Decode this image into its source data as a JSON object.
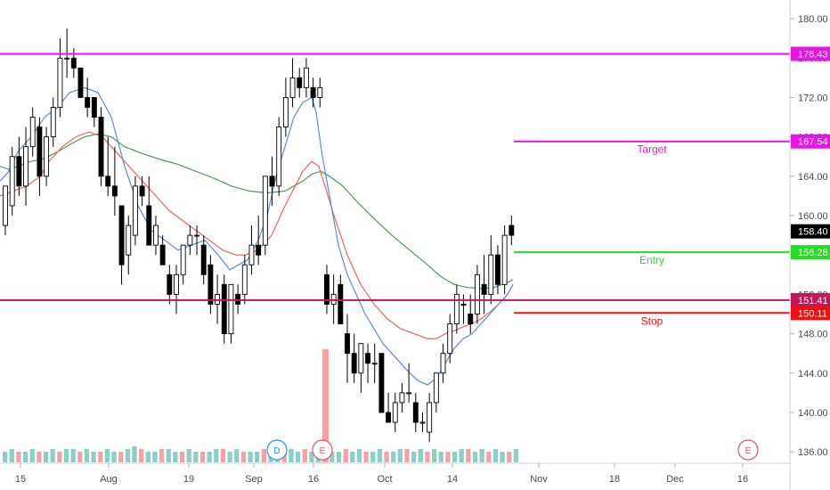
{
  "chart_data": {
    "type": "candlestick",
    "x_tick_labels": [
      "15",
      "Aug",
      "19",
      "Sep",
      "16",
      "Oct",
      "14",
      "Nov",
      "18",
      "Dec",
      "16"
    ],
    "y_tick_labels": [
      "136.00",
      "140.00",
      "144.00",
      "148.00",
      "152.00",
      "156.00",
      "160.00",
      "164.00",
      "168.00",
      "172.00",
      "176.00",
      "180.00"
    ],
    "ylim": [
      135.2,
      181.0
    ],
    "last_price": "158.40",
    "horizontal_levels": [
      {
        "value": 176.43,
        "label": "176.43",
        "color": "#e516e5",
        "full_width": true
      },
      {
        "value": 151.41,
        "label": "151.41",
        "color": "#c2185b",
        "full_width": true
      },
      {
        "value": 167.54,
        "label": "167.54",
        "color": "#e516e5",
        "full_width": false,
        "name": "Target"
      },
      {
        "value": 156.28,
        "label": "156.28",
        "color": "#22dd22",
        "full_width": false,
        "name": "Entry"
      },
      {
        "value": 150.11,
        "label": "150.11",
        "color": "#ee1111",
        "full_width": false,
        "name": "Stop"
      }
    ],
    "events": [
      {
        "label": "D",
        "color": "#2196f3"
      },
      {
        "label": "E",
        "color": "#e05573"
      },
      {
        "label": "E",
        "color": "#e05573"
      }
    ],
    "candles": [
      [
        159,
        163,
        158,
        163
      ],
      [
        161,
        167,
        160,
        166
      ],
      [
        166,
        168,
        162,
        163
      ],
      [
        163,
        169,
        161,
        167
      ],
      [
        167,
        171,
        166,
        170
      ],
      [
        169,
        170,
        162,
        164
      ],
      [
        164,
        169,
        163,
        168
      ],
      [
        168,
        172,
        167,
        171
      ],
      [
        171,
        178,
        170,
        176
      ],
      [
        176,
        179,
        174,
        176
      ],
      [
        176,
        177,
        174,
        175
      ],
      [
        175,
        175,
        172,
        172
      ],
      [
        172,
        174,
        170,
        171
      ],
      [
        172,
        172,
        169,
        170
      ],
      [
        170,
        171,
        163,
        164
      ],
      [
        164,
        168,
        162,
        163
      ],
      [
        163,
        167,
        160,
        162
      ],
      [
        161,
        161,
        153,
        155
      ],
      [
        156,
        160,
        154,
        159
      ],
      [
        158,
        164,
        157,
        163
      ],
      [
        163,
        164,
        161,
        162
      ],
      [
        161,
        164,
        157,
        157
      ],
      [
        157,
        160,
        156,
        159
      ],
      [
        157,
        158,
        155,
        155
      ],
      [
        154,
        155,
        151,
        152
      ],
      [
        152,
        155,
        150,
        154
      ],
      [
        154,
        157,
        153,
        157
      ],
      [
        157,
        159,
        156,
        158
      ],
      [
        158,
        159,
        156,
        158
      ],
      [
        157,
        158,
        153,
        154
      ],
      [
        155,
        156,
        150,
        151
      ],
      [
        151,
        154,
        149,
        152
      ],
      [
        153,
        154,
        147,
        148
      ],
      [
        148,
        153,
        147,
        153
      ],
      [
        152,
        153,
        150,
        151
      ],
      [
        152,
        156,
        151,
        155
      ],
      [
        155,
        159,
        154,
        157
      ],
      [
        157,
        160,
        155,
        156
      ],
      [
        157,
        164,
        156,
        164
      ],
      [
        164,
        166,
        161,
        163
      ],
      [
        163,
        170,
        162,
        169
      ],
      [
        169,
        174,
        168,
        172
      ],
      [
        172,
        176,
        171,
        174
      ],
      [
        174,
        175,
        172,
        173
      ],
      [
        173,
        176,
        172,
        175
      ],
      [
        173,
        174,
        171,
        172
      ],
      [
        172,
        174,
        171,
        173
      ],
      [
        154,
        155,
        150,
        151
      ],
      [
        151,
        154,
        149,
        152
      ],
      [
        153,
        154,
        149,
        149
      ],
      [
        148,
        150,
        143,
        146
      ],
      [
        146,
        148,
        143,
        144
      ],
      [
        144,
        147,
        142,
        147
      ],
      [
        146,
        147,
        143,
        145
      ],
      [
        145,
        147,
        143,
        145
      ],
      [
        146,
        146,
        140,
        140
      ],
      [
        140,
        142,
        139,
        139
      ],
      [
        139,
        142,
        138,
        141
      ],
      [
        141,
        143,
        140,
        142
      ],
      [
        142,
        145,
        141,
        142
      ],
      [
        141,
        142,
        138,
        139
      ],
      [
        139,
        140,
        138,
        139
      ],
      [
        138,
        142,
        137,
        141
      ],
      [
        141,
        144,
        140,
        144
      ],
      [
        144,
        147,
        143,
        146
      ],
      [
        146,
        150,
        145,
        149
      ],
      [
        149,
        153,
        148,
        152
      ],
      [
        151,
        152,
        149,
        151
      ],
      [
        150,
        152,
        148,
        149
      ],
      [
        150,
        155,
        149,
        154
      ],
      [
        153,
        156,
        150,
        152
      ],
      [
        152,
        158,
        151,
        156
      ],
      [
        156,
        157,
        152,
        153
      ],
      [
        153,
        159,
        152,
        158
      ],
      [
        159,
        160,
        157,
        158
      ]
    ],
    "ma_blue": [
      [
        0,
        163.5
      ],
      [
        10,
        164.5
      ],
      [
        20,
        166.5
      ],
      [
        35,
        168
      ],
      [
        50,
        170
      ],
      [
        65,
        171
      ],
      [
        78,
        172.5
      ],
      [
        95,
        173
      ],
      [
        110,
        172.5
      ],
      [
        125,
        170
      ],
      [
        140,
        165
      ],
      [
        155,
        161
      ],
      [
        170,
        158.5
      ],
      [
        185,
        157.5
      ],
      [
        200,
        156.5
      ],
      [
        215,
        157
      ],
      [
        230,
        157.5
      ],
      [
        245,
        156
      ],
      [
        258,
        154.5
      ],
      [
        268,
        155
      ],
      [
        278,
        155.5
      ],
      [
        290,
        157.5
      ],
      [
        300,
        160
      ],
      [
        310,
        164
      ],
      [
        320,
        167
      ],
      [
        330,
        170
      ],
      [
        340,
        171.5
      ],
      [
        350,
        172
      ],
      [
        355,
        170.5
      ],
      [
        362,
        166
      ],
      [
        370,
        162
      ],
      [
        380,
        157
      ],
      [
        390,
        154
      ],
      [
        400,
        152
      ],
      [
        410,
        150
      ],
      [
        420,
        148.5
      ],
      [
        430,
        147
      ],
      [
        445,
        145.5
      ],
      [
        460,
        144
      ],
      [
        470,
        143.2
      ],
      [
        480,
        142.8
      ],
      [
        490,
        143.5
      ],
      [
        500,
        145
      ],
      [
        510,
        146.5
      ],
      [
        520,
        147.5
      ],
      [
        530,
        148
      ],
      [
        540,
        149
      ],
      [
        550,
        150
      ],
      [
        560,
        151
      ],
      [
        570,
        152
      ],
      [
        576,
        153
      ]
    ],
    "ma_red": [
      [
        0,
        162
      ],
      [
        15,
        162.5
      ],
      [
        30,
        163
      ],
      [
        45,
        164
      ],
      [
        55,
        165.5
      ],
      [
        70,
        167
      ],
      [
        85,
        168
      ],
      [
        100,
        168.5
      ],
      [
        115,
        168
      ],
      [
        130,
        166.5
      ],
      [
        145,
        165
      ],
      [
        160,
        163.5
      ],
      [
        175,
        162
      ],
      [
        190,
        160.5
      ],
      [
        205,
        159.5
      ],
      [
        220,
        158.5
      ],
      [
        235,
        157.5
      ],
      [
        250,
        156.5
      ],
      [
        265,
        156
      ],
      [
        275,
        156
      ],
      [
        290,
        156.5
      ],
      [
        305,
        158
      ],
      [
        320,
        161
      ],
      [
        340,
        164.5
      ],
      [
        350,
        165.5
      ],
      [
        358,
        165
      ],
      [
        365,
        163
      ],
      [
        375,
        160
      ],
      [
        390,
        156
      ],
      [
        405,
        153
      ],
      [
        420,
        151
      ],
      [
        435,
        149.5
      ],
      [
        450,
        148.5
      ],
      [
        465,
        148
      ],
      [
        480,
        147.5
      ],
      [
        490,
        147.5
      ],
      [
        500,
        148
      ],
      [
        510,
        148.3
      ],
      [
        520,
        148.7
      ],
      [
        530,
        149
      ],
      [
        540,
        149.5
      ],
      [
        550,
        150.2
      ],
      [
        560,
        151
      ],
      [
        570,
        152
      ],
      [
        576,
        153
      ]
    ],
    "ma_green": [
      [
        0,
        165
      ],
      [
        10,
        164.7
      ],
      [
        20,
        165
      ],
      [
        35,
        165.5
      ],
      [
        50,
        165.8
      ],
      [
        65,
        166.5
      ],
      [
        80,
        167.3
      ],
      [
        95,
        168
      ],
      [
        110,
        168.3
      ],
      [
        125,
        168
      ],
      [
        140,
        167
      ],
      [
        160,
        166.3
      ],
      [
        180,
        165.7
      ],
      [
        200,
        165.2
      ],
      [
        220,
        164.5
      ],
      [
        240,
        163.8
      ],
      [
        260,
        163
      ],
      [
        280,
        162.5
      ],
      [
        300,
        162.3
      ],
      [
        320,
        162.5
      ],
      [
        340,
        163.5
      ],
      [
        350,
        164.2
      ],
      [
        360,
        164.5
      ],
      [
        370,
        164
      ],
      [
        385,
        163
      ],
      [
        400,
        161.5
      ],
      [
        420,
        159.7
      ],
      [
        440,
        158
      ],
      [
        460,
        156.5
      ],
      [
        480,
        155
      ],
      [
        495,
        153.8
      ],
      [
        510,
        153
      ],
      [
        525,
        152.7
      ],
      [
        540,
        152.6
      ],
      [
        555,
        152.7
      ],
      [
        570,
        153.2
      ],
      [
        576,
        153.5
      ]
    ],
    "volumes": [
      2,
      3,
      2,
      2,
      3,
      2,
      2,
      3,
      2,
      3,
      3,
      2,
      3,
      2,
      2,
      3,
      2,
      2,
      3,
      4,
      3,
      2,
      2,
      3,
      3,
      2,
      2,
      3,
      2,
      2,
      2,
      3,
      3,
      2,
      3,
      2,
      2,
      2,
      3,
      2,
      3,
      2,
      3,
      2,
      3,
      2,
      2,
      3,
      2,
      2,
      3,
      2,
      3,
      2,
      2,
      3,
      2,
      2,
      3,
      3,
      2,
      3,
      2,
      3,
      2,
      2,
      2,
      3,
      3,
      2,
      3,
      2,
      3,
      2,
      2,
      3,
      2,
      3,
      2,
      2,
      3,
      2,
      3,
      2,
      2,
      3,
      2,
      3,
      2,
      2,
      3,
      2,
      2,
      3,
      2,
      2,
      3,
      2,
      2,
      3,
      2,
      3,
      2,
      2,
      3,
      2,
      3,
      2,
      2,
      3,
      2,
      3,
      2,
      3,
      2,
      2,
      3,
      2,
      2,
      3,
      2,
      2,
      3,
      2,
      3,
      2,
      2,
      3,
      2,
      3,
      2,
      2,
      3,
      2,
      2,
      3,
      3,
      2,
      3,
      2,
      3,
      2,
      2,
      3,
      2,
      3,
      2,
      2,
      2,
      3,
      2,
      3,
      2,
      2,
      3,
      2,
      2,
      3,
      2,
      2,
      3,
      2,
      2,
      2,
      3,
      2,
      3,
      2,
      2,
      3,
      2,
      2,
      3,
      2,
      2,
      3,
      2,
      2,
      3,
      2,
      3,
      2,
      3,
      2,
      3,
      2,
      3,
      2,
      2,
      3,
      2,
      2,
      3,
      2,
      3,
      2,
      2,
      3,
      2,
      2,
      3,
      2,
      2,
      3,
      2,
      2,
      3,
      2,
      3,
      2,
      2,
      3,
      2,
      3,
      2,
      2,
      3,
      2,
      2,
      3,
      2,
      3,
      2,
      2,
      3,
      2,
      3,
      2,
      3,
      2,
      2,
      3,
      2,
      2,
      3,
      2,
      3,
      2
    ]
  },
  "colors": {
    "up_candle": "#ffffff",
    "down_candle": "#000000",
    "candle_border": "#000000",
    "ma_blue": "#5b8ec9",
    "ma_red": "#e8675c",
    "ma_green": "#4c9a5a",
    "volume_teal": "#8ad0c6",
    "volume_red": "#f3a3a3",
    "axis_text": "#4a4a4a",
    "price_badge_bg": "#000000"
  }
}
